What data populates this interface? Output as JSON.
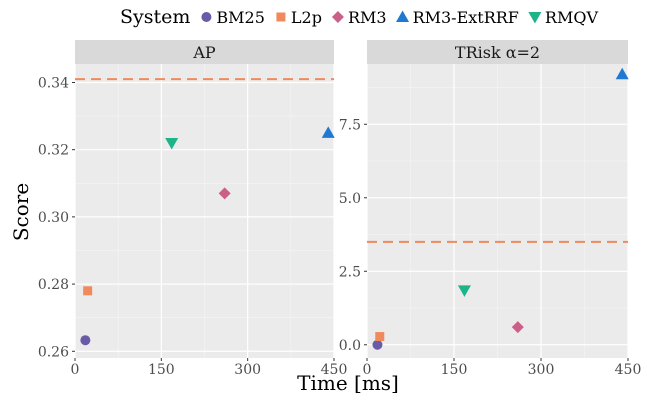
{
  "chart_data": {
    "type": "scatter",
    "legend": {
      "title": "System",
      "position": "top"
    },
    "xlabel": "Time [ms]",
    "ylabel": "Score",
    "systems": [
      {
        "name": "BM25",
        "shape": "circle",
        "color": "#6a5ba6"
      },
      {
        "name": "L2p",
        "shape": "square",
        "color": "#f08a5d"
      },
      {
        "name": "RM3",
        "shape": "diamond",
        "color": "#cc5f88"
      },
      {
        "name": "RM3-ExtRRF",
        "shape": "triangle-up",
        "color": "#1f78d1"
      },
      {
        "name": "RMQV",
        "shape": "triangle-down",
        "color": "#1fb38a"
      }
    ],
    "panels": [
      {
        "title": "AP",
        "xlim": [
          0,
          450
        ],
        "ylim": [
          0.258,
          0.3455
        ],
        "xticks": [
          0,
          150,
          300,
          450
        ],
        "yticks": [
          0.26,
          0.28,
          0.3,
          0.32,
          0.34
        ],
        "ytick_labels": [
          "0.26",
          "0.28",
          "0.30",
          "0.32",
          "0.34"
        ],
        "hline": {
          "y": 0.341,
          "color": "#f08a5d"
        },
        "points": [
          {
            "system": "BM25",
            "x": 18,
            "y": 0.2633
          },
          {
            "system": "L2p",
            "x": 22,
            "y": 0.278
          },
          {
            "system": "RM3",
            "x": 260,
            "y": 0.307
          },
          {
            "system": "RM3-ExtRRF",
            "x": 440,
            "y": 0.325
          },
          {
            "system": "RMQV",
            "x": 168,
            "y": 0.322
          }
        ]
      },
      {
        "title": "TRisk α=2",
        "xlim": [
          0,
          450
        ],
        "ylim": [
          -0.45,
          9.55
        ],
        "xticks": [
          0,
          150,
          300,
          450
        ],
        "yticks": [
          0,
          2.5,
          5,
          7.5
        ],
        "ytick_labels": [
          "0.0",
          "2.5",
          "5.0",
          "7.5"
        ],
        "hline": {
          "y": 3.5,
          "color": "#f08a5d"
        },
        "points": [
          {
            "system": "BM25",
            "x": 18,
            "y": 0.0
          },
          {
            "system": "L2p",
            "x": 22,
            "y": 0.28
          },
          {
            "system": "RM3",
            "x": 260,
            "y": 0.6
          },
          {
            "system": "RM3-ExtRRF",
            "x": 440,
            "y": 9.2
          },
          {
            "system": "RMQV",
            "x": 168,
            "y": 1.85
          }
        ]
      }
    ]
  }
}
